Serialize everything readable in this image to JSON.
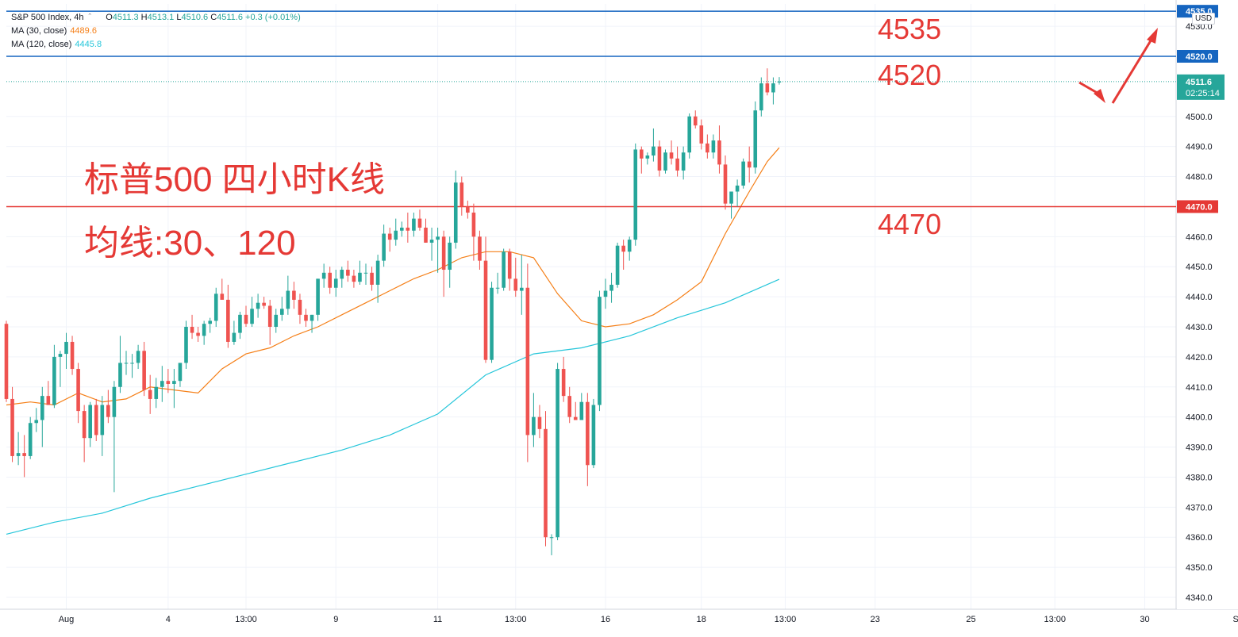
{
  "legend": {
    "symbol": "S&P 500 Index, 4h",
    "open_label": "O",
    "open": "4511.3",
    "high_label": "H",
    "high": "4513.1",
    "low_label": "L",
    "low": "4510.6",
    "close_label": "C",
    "close": "4511.6",
    "change": "+0.3 (+0.01%)",
    "ma30_label": "MA (30, close)",
    "ma30_value": "4489.6",
    "ma120_label": "MA (120, close)",
    "ma120_value": "4445.8"
  },
  "currency": "USD",
  "annotations": {
    "title": "标普500 四小时K线",
    "ma_note": "均线:30、120",
    "level_4535": "4535",
    "level_4520": "4520",
    "level_4470": "4470"
  },
  "price_tags": {
    "top": "4535.0",
    "mid": "4520.0",
    "low": "4470.0",
    "last": "4511.6",
    "countdown": "02:25:14"
  },
  "colors": {
    "up": "#26a69a",
    "down": "#ef5350",
    "ma30": "#f57f17",
    "ma120": "#26c6da",
    "support": "#e53935",
    "resistance": "#1565c0",
    "annotation": "#e53935",
    "grid": "#f0f3fa",
    "axis_text": "#131722"
  },
  "chart_data": {
    "type": "candlestick",
    "ylim": [
      4335,
      4540
    ],
    "y_ticks": [
      4340,
      4350,
      4360,
      4370,
      4380,
      4390,
      4400,
      4410,
      4420,
      4430,
      4440,
      4450,
      4460,
      4470,
      4480,
      4490,
      4500,
      4530
    ],
    "x_tick_labels": [
      {
        "i": 10,
        "label": "Aug"
      },
      {
        "i": 27,
        "label": "4"
      },
      {
        "i": 40,
        "label": "13:00"
      },
      {
        "i": 55,
        "label": "9"
      },
      {
        "i": 72,
        "label": "11"
      },
      {
        "i": 85,
        "label": "13:00"
      },
      {
        "i": 100,
        "label": "16"
      },
      {
        "i": 116,
        "label": "18"
      },
      {
        "i": 130,
        "label": "13:00"
      },
      {
        "i": 145,
        "label": "23"
      },
      {
        "i": 161,
        "label": "25"
      },
      {
        "i": 175,
        "label": "13:00"
      },
      {
        "i": 190,
        "label": "30"
      },
      {
        "i": 206,
        "label": "Sep"
      }
    ],
    "x_count": 214,
    "horizontal_lines": [
      {
        "value": 4535,
        "label": "4535.0",
        "role": "resistance"
      },
      {
        "value": 4520,
        "label": "4520.0",
        "role": "resistance"
      },
      {
        "value": 4470,
        "label": "4470.0",
        "role": "support"
      }
    ],
    "candles": [
      [
        0,
        4431,
        4432,
        4405,
        4406
      ],
      [
        1,
        4406,
        4410,
        4385,
        4387
      ],
      [
        2,
        4387,
        4395,
        4384,
        4388
      ],
      [
        3,
        4388,
        4394,
        4380,
        4387
      ],
      [
        4,
        4387,
        4400,
        4386,
        4398
      ],
      [
        5,
        4398,
        4403,
        4395,
        4399
      ],
      [
        6,
        4399,
        4410,
        4390,
        4407
      ],
      [
        7,
        4407,
        4412,
        4404,
        4404
      ],
      [
        8,
        4404,
        4424,
        4403,
        4420
      ],
      [
        9,
        4420,
        4422,
        4410,
        4421
      ],
      [
        10,
        4421,
        4428,
        4416,
        4425
      ],
      [
        11,
        4425,
        4427,
        4414,
        4416
      ],
      [
        12,
        4416,
        4418,
        4398,
        4402
      ],
      [
        13,
        4402,
        4404,
        4385,
        4393
      ],
      [
        14,
        4393,
        4405,
        4390,
        4404
      ],
      [
        15,
        4404,
        4406,
        4392,
        4394
      ],
      [
        16,
        4394,
        4407,
        4387,
        4404
      ],
      [
        17,
        4404,
        4409,
        4398,
        4400
      ],
      [
        18,
        4400,
        4412,
        4375,
        4410
      ],
      [
        19,
        4410,
        4427,
        4408,
        4418
      ],
      [
        20,
        4418,
        4422,
        4414,
        4418
      ],
      [
        21,
        4418,
        4421,
        4413,
        4418
      ],
      [
        22,
        4418,
        4424,
        4416,
        4422
      ],
      [
        23,
        4422,
        4425,
        4407,
        4409
      ],
      [
        24,
        4409,
        4414,
        4401,
        4406
      ],
      [
        25,
        4406,
        4413,
        4403,
        4410
      ],
      [
        26,
        4410,
        4417,
        4405,
        4412
      ],
      [
        27,
        4412,
        4416,
        4408,
        4411
      ],
      [
        28,
        4411,
        4416,
        4403,
        4412
      ],
      [
        29,
        4412,
        4418,
        4410,
        4418
      ],
      [
        30,
        4418,
        4432,
        4416,
        4430
      ],
      [
        31,
        4430,
        4434,
        4426,
        4428
      ],
      [
        32,
        4428,
        4430,
        4425,
        4427
      ],
      [
        33,
        4427,
        4432,
        4424,
        4431
      ],
      [
        34,
        4431,
        4433,
        4428,
        4432
      ],
      [
        35,
        4432,
        4443,
        4430,
        4441
      ],
      [
        36,
        4441,
        4446,
        4440,
        4439
      ],
      [
        37,
        4439,
        4444,
        4423,
        4425
      ],
      [
        38,
        4425,
        4432,
        4424,
        4428
      ],
      [
        39,
        4428,
        4435,
        4426,
        4434
      ],
      [
        40,
        4434,
        4437,
        4430,
        4431
      ],
      [
        41,
        4431,
        4440,
        4430,
        4436
      ],
      [
        42,
        4436,
        4441,
        4433,
        4438
      ],
      [
        43,
        4438,
        4440,
        4436,
        4437
      ],
      [
        44,
        4437,
        4439,
        4424,
        4430
      ],
      [
        45,
        4430,
        4436,
        4428,
        4434
      ],
      [
        46,
        4434,
        4440,
        4432,
        4436
      ],
      [
        47,
        4436,
        4447,
        4434,
        4442
      ],
      [
        48,
        4442,
        4445,
        4436,
        4439
      ],
      [
        49,
        4439,
        4441,
        4431,
        4434
      ],
      [
        50,
        4434,
        4436,
        4430,
        4432
      ],
      [
        51,
        4432,
        4434,
        4428,
        4434
      ],
      [
        52,
        4434,
        4446,
        4432,
        4446
      ],
      [
        53,
        4446,
        4451,
        4443,
        4448
      ],
      [
        54,
        4448,
        4450,
        4441,
        4443
      ],
      [
        55,
        4443,
        4449,
        4440,
        4446
      ],
      [
        56,
        4446,
        4450,
        4443,
        4449
      ],
      [
        57,
        4449,
        4452,
        4445,
        4447
      ],
      [
        58,
        4447,
        4449,
        4443,
        4445
      ],
      [
        59,
        4445,
        4452,
        4444,
        4448
      ],
      [
        60,
        4448,
        4451,
        4444,
        4448
      ],
      [
        61,
        4448,
        4450,
        4442,
        4444
      ],
      [
        62,
        4444,
        4454,
        4438,
        4452
      ],
      [
        63,
        4452,
        4464,
        4450,
        4461
      ],
      [
        64,
        4461,
        4463,
        4455,
        4459
      ],
      [
        65,
        4459,
        4466,
        4457,
        4462
      ],
      [
        66,
        4462,
        4465,
        4460,
        4463
      ],
      [
        67,
        4463,
        4468,
        4458,
        4462
      ],
      [
        68,
        4462,
        4468,
        4460,
        4466
      ],
      [
        69,
        4466,
        4469,
        4462,
        4463
      ],
      [
        70,
        4463,
        4466,
        4458,
        4458
      ],
      [
        71,
        4458,
        4463,
        4452,
        4459
      ],
      [
        72,
        4459,
        4463,
        4448,
        4460
      ],
      [
        73,
        4460,
        4462,
        4440,
        4449
      ],
      [
        74,
        4449,
        4460,
        4443,
        4458
      ],
      [
        75,
        4458,
        4482,
        4456,
        4478
      ],
      [
        76,
        4478,
        4480,
        4467,
        4470
      ],
      [
        77,
        4470,
        4472,
        4466,
        4468
      ],
      [
        78,
        4468,
        4471,
        4452,
        4460
      ],
      [
        79,
        4460,
        4462,
        4449,
        4452
      ],
      [
        80,
        4452,
        4460,
        4418,
        4419
      ],
      [
        81,
        4419,
        4445,
        4418,
        4443
      ],
      [
        82,
        4443,
        4448,
        4441,
        4443
      ],
      [
        83,
        4443,
        4456,
        4442,
        4455
      ],
      [
        84,
        4455,
        4456,
        4442,
        4446
      ],
      [
        85,
        4446,
        4453,
        4440,
        4442
      ],
      [
        86,
        4442,
        4454,
        4434,
        4443
      ],
      [
        87,
        4443,
        4451,
        4385,
        4394
      ],
      [
        88,
        4394,
        4408,
        4390,
        4400
      ],
      [
        89,
        4400,
        4404,
        4393,
        4396
      ],
      [
        90,
        4396,
        4402,
        4357,
        4360
      ],
      [
        91,
        4360,
        4361,
        4354,
        4360
      ],
      [
        92,
        4360,
        4418,
        4359,
        4416
      ],
      [
        93,
        4416,
        4420,
        4405,
        4407
      ],
      [
        94,
        4407,
        4410,
        4398,
        4400
      ],
      [
        95,
        4400,
        4405,
        4399,
        4399
      ],
      [
        96,
        4399,
        4408,
        4400,
        4405
      ],
      [
        97,
        4405,
        4408,
        4377,
        4384
      ],
      [
        98,
        4384,
        4406,
        4383,
        4404
      ],
      [
        99,
        4404,
        4442,
        4402,
        4440
      ],
      [
        100,
        4440,
        4446,
        4436,
        4442
      ],
      [
        101,
        4442,
        4448,
        4438,
        4444
      ],
      [
        102,
        4444,
        4458,
        4443,
        4457
      ],
      [
        103,
        4457,
        4459,
        4449,
        4455
      ],
      [
        104,
        4455,
        4460,
        4452,
        4459
      ],
      [
        105,
        4459,
        4491,
        4457,
        4489
      ],
      [
        106,
        4489,
        4490,
        4481,
        4486
      ],
      [
        107,
        4486,
        4488,
        4484,
        4487
      ],
      [
        108,
        4487,
        4496,
        4485,
        4490
      ],
      [
        109,
        4490,
        4492,
        4480,
        4482
      ],
      [
        110,
        4482,
        4489,
        4481,
        4488
      ],
      [
        111,
        4488,
        4492,
        4484,
        4486
      ],
      [
        112,
        4486,
        4490,
        4480,
        4482
      ],
      [
        113,
        4482,
        4490,
        4479,
        4488
      ],
      [
        114,
        4488,
        4501,
        4486,
        4500
      ],
      [
        115,
        4500,
        4502,
        4496,
        4497
      ],
      [
        116,
        4497,
        4499,
        4489,
        4491
      ],
      [
        117,
        4491,
        4494,
        4486,
        4488
      ],
      [
        118,
        4488,
        4494,
        4486,
        4492
      ],
      [
        119,
        4492,
        4497,
        4481,
        4484
      ],
      [
        120,
        4484,
        4487,
        4469,
        4471
      ],
      [
        121,
        4471,
        4474,
        4466,
        4475
      ],
      [
        122,
        4475,
        4479,
        4470,
        4477
      ],
      [
        123,
        4477,
        4486,
        4476,
        4485
      ],
      [
        124,
        4485,
        4490,
        4478,
        4483
      ],
      [
        125,
        4483,
        4505,
        4481,
        4502
      ],
      [
        126,
        4502,
        4513,
        4500,
        4511
      ],
      [
        127,
        4511,
        4516,
        4507,
        4508
      ],
      [
        128,
        4508,
        4513,
        4504,
        4511
      ],
      [
        129,
        4511.3,
        4513.1,
        4510.6,
        4511.6
      ]
    ],
    "ma30": [
      [
        0,
        4404
      ],
      [
        4,
        4405
      ],
      [
        8,
        4404
      ],
      [
        12,
        4408
      ],
      [
        16,
        4405
      ],
      [
        20,
        4406
      ],
      [
        24,
        4410
      ],
      [
        28,
        4409
      ],
      [
        32,
        4408
      ],
      [
        36,
        4416
      ],
      [
        40,
        4421
      ],
      [
        44,
        4423
      ],
      [
        48,
        4427
      ],
      [
        52,
        4430
      ],
      [
        56,
        4434
      ],
      [
        60,
        4438
      ],
      [
        64,
        4442
      ],
      [
        68,
        4446
      ],
      [
        72,
        4449
      ],
      [
        76,
        4453
      ],
      [
        80,
        4455
      ],
      [
        84,
        4455
      ],
      [
        88,
        4453
      ],
      [
        92,
        4441
      ],
      [
        96,
        4432
      ],
      [
        100,
        4430
      ],
      [
        104,
        4431
      ],
      [
        108,
        4434
      ],
      [
        112,
        4439
      ],
      [
        116,
        4445
      ],
      [
        120,
        4461
      ],
      [
        124,
        4475
      ],
      [
        127,
        4485
      ],
      [
        129,
        4489.6
      ]
    ],
    "ma120": [
      [
        0,
        4361
      ],
      [
        8,
        4365
      ],
      [
        16,
        4368
      ],
      [
        24,
        4373
      ],
      [
        32,
        4377
      ],
      [
        40,
        4381
      ],
      [
        48,
        4385
      ],
      [
        56,
        4389
      ],
      [
        64,
        4394
      ],
      [
        72,
        4401
      ],
      [
        80,
        4414
      ],
      [
        88,
        4421
      ],
      [
        96,
        4423
      ],
      [
        104,
        4427
      ],
      [
        112,
        4433
      ],
      [
        120,
        4438
      ],
      [
        129,
        4445.8
      ]
    ]
  }
}
